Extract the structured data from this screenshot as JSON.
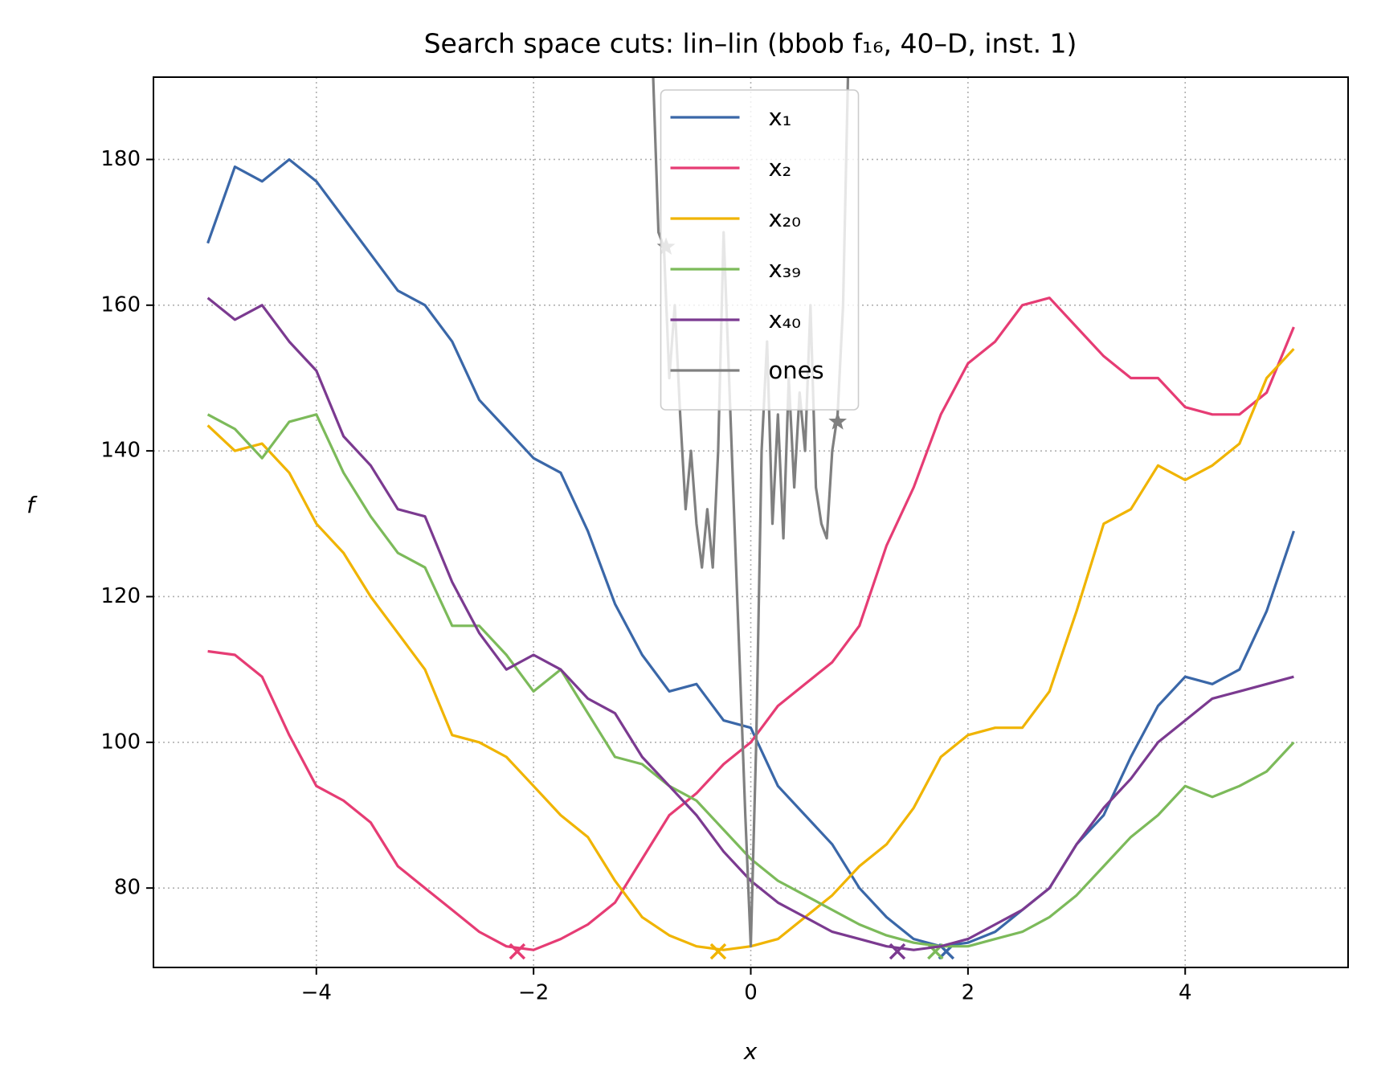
{
  "chart_data": {
    "type": "line",
    "title": "Search space cuts: lin–lin (bbob f₁₆, 40–D, inst. 1)",
    "x_label": "x",
    "y_label": "f",
    "xlim": [
      -5.5,
      5.5
    ],
    "ylim": [
      69.1,
      191.3
    ],
    "xticks": [
      {
        "value": -4,
        "label": "−4"
      },
      {
        "value": -2,
        "label": "−2"
      },
      0,
      2,
      4
    ],
    "yticks": [
      80,
      100,
      120,
      140,
      160,
      180
    ],
    "grid": true,
    "legend": "upper center",
    "x": [
      -5,
      -4.75,
      -4.5,
      -4.25,
      -4,
      -3.75,
      -3.5,
      -3.25,
      -3,
      -2.75,
      -2.5,
      -2.25,
      -2,
      -1.75,
      -1.5,
      -1.25,
      -1,
      -0.75,
      -0.5,
      -0.25,
      0,
      0.25,
      0.5,
      0.75,
      1,
      1.25,
      1.5,
      1.75,
      2,
      2.25,
      2.5,
      2.75,
      3,
      3.25,
      3.5,
      3.75,
      4,
      4.25,
      4.5,
      4.75,
      5
    ],
    "series": [
      {
        "name": "x₁",
        "color": "#3a67a8",
        "marker_symbol": "x",
        "markers": [
          {
            "x": 1.8,
            "y": 71.3
          }
        ],
        "values": [
          168.5,
          179,
          177,
          180,
          177,
          172,
          167,
          162,
          160,
          155,
          147,
          143,
          139,
          137,
          129,
          119,
          112,
          107,
          108,
          103,
          102,
          94,
          90,
          86,
          80,
          76,
          73,
          72,
          72.5,
          74,
          77,
          80,
          86,
          90,
          98,
          105,
          109,
          108,
          110,
          118,
          129
        ]
      },
      {
        "name": "x₂",
        "color": "#e63c74",
        "marker_symbol": "x",
        "markers": [
          {
            "x": -2.15,
            "y": 71.3
          }
        ],
        "values": [
          112.5,
          112,
          109,
          101,
          94,
          92,
          89,
          83,
          80,
          77,
          74,
          72,
          71.5,
          73,
          75,
          78,
          84,
          90,
          93,
          97,
          100,
          105,
          108,
          111,
          116,
          127,
          135,
          145,
          152,
          155,
          160,
          161,
          157,
          153,
          150,
          150,
          146,
          145,
          145,
          148,
          157
        ]
      },
      {
        "name": "x₂₀",
        "color": "#f0b400",
        "marker_symbol": "x",
        "markers": [
          {
            "x": -0.3,
            "y": 71.3
          }
        ],
        "values": [
          143.5,
          140,
          141,
          137,
          130,
          126,
          120,
          115,
          110,
          101,
          100,
          98,
          94,
          90,
          87,
          81,
          76,
          73.5,
          72,
          71.5,
          72,
          73,
          76,
          79,
          83,
          86,
          91,
          98,
          101,
          102,
          102,
          107,
          118,
          130,
          132,
          138,
          136,
          138,
          141,
          150,
          154
        ]
      },
      {
        "name": "x₃₉",
        "color": "#7cba5a",
        "marker_symbol": "x",
        "markers": [
          {
            "x": 1.7,
            "y": 71.3
          }
        ],
        "values": [
          145,
          143,
          139,
          144,
          145,
          137,
          131,
          126,
          124,
          116,
          116,
          112,
          107,
          110,
          104,
          98,
          97,
          94,
          92,
          88,
          84,
          81,
          79,
          77,
          75,
          73.5,
          72.5,
          72,
          72,
          73,
          74,
          76,
          79,
          83,
          87,
          90,
          94,
          92.5,
          94,
          96,
          100
        ]
      },
      {
        "name": "x₄₀",
        "color": "#7b3a90",
        "marker_symbol": "x",
        "markers": [
          {
            "x": 1.35,
            "y": 71.3
          }
        ],
        "values": [
          161,
          158,
          160,
          155,
          151,
          142,
          138,
          132,
          131,
          122,
          115,
          110,
          112,
          110,
          106,
          104,
          98,
          94,
          90,
          85,
          81,
          78,
          76,
          74,
          73,
          72,
          71.5,
          72,
          73,
          75,
          77,
          80,
          86,
          91,
          95,
          100,
          103,
          106,
          107,
          108,
          109
        ]
      },
      {
        "name": "ones",
        "color": "#808080",
        "marker_symbol": "star",
        "markers": [
          {
            "x": -0.78,
            "y": 168
          },
          {
            "x": 0.8,
            "y": 144
          }
        ],
        "x": [
          -0.9,
          -0.85,
          -0.8,
          -0.75,
          -0.7,
          -0.65,
          -0.6,
          -0.55,
          -0.5,
          -0.45,
          -0.4,
          -0.35,
          -0.3,
          -0.25,
          -0.2,
          -0.15,
          -0.1,
          -0.05,
          0,
          0.05,
          0.1,
          0.15,
          0.2,
          0.25,
          0.3,
          0.35,
          0.4,
          0.45,
          0.5,
          0.55,
          0.6,
          0.65,
          0.7,
          0.75,
          0.8,
          0.85,
          0.9
        ],
        "values": [
          192,
          170,
          168,
          150,
          160,
          145,
          132,
          140,
          130,
          124,
          132,
          124,
          140,
          170,
          150,
          130,
          110,
          90,
          72,
          100,
          140,
          155,
          130,
          145,
          128,
          150,
          135,
          148,
          140,
          160,
          135,
          130,
          128,
          140,
          145,
          160,
          195
        ]
      }
    ]
  }
}
